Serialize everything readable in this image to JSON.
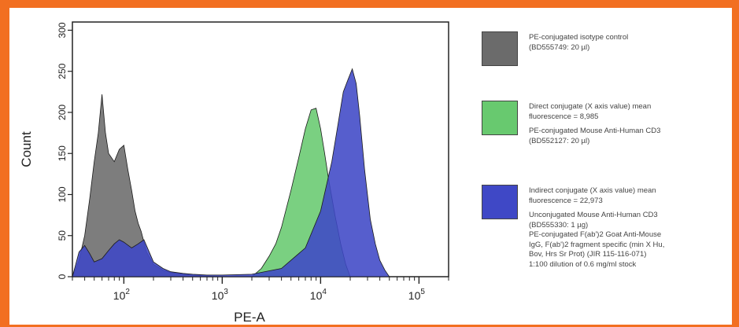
{
  "chart_data": {
    "type": "area",
    "xlabel": "PE-A",
    "ylabel": "Count",
    "xscale": "log",
    "xlim": [
      30,
      200000
    ],
    "ylim": [
      0,
      310
    ],
    "y_ticks": [
      0,
      50,
      100,
      150,
      200,
      250,
      300
    ],
    "x_tick_labels": [
      {
        "value": 100,
        "base": "10",
        "exp": "2"
      },
      {
        "value": 1000,
        "base": "10",
        "exp": "3"
      },
      {
        "value": 10000,
        "base": "10",
        "exp": "4"
      },
      {
        "value": 100000,
        "base": "10",
        "exp": "5"
      }
    ],
    "series": [
      {
        "key": "isotype",
        "color": "#6b6b6b",
        "x": [
          30,
          35,
          40,
          45,
          50,
          55,
          60,
          65,
          70,
          80,
          90,
          100,
          110,
          120,
          130,
          140,
          150,
          170,
          200,
          250,
          300,
          400,
          500,
          700,
          1000
        ],
        "values": [
          0,
          20,
          50,
          95,
          140,
          175,
          222,
          175,
          150,
          140,
          155,
          160,
          130,
          105,
          80,
          65,
          55,
          30,
          15,
          8,
          5,
          3,
          2,
          1,
          0
        ]
      },
      {
        "key": "direct",
        "color": "#68c96f",
        "x": [
          2000,
          2500,
          3000,
          3500,
          4000,
          5000,
          6000,
          7000,
          8000,
          9000,
          10000,
          11000,
          12000,
          14000,
          16000,
          18000,
          20000
        ],
        "values": [
          0,
          10,
          25,
          40,
          60,
          105,
          145,
          180,
          203,
          205,
          180,
          150,
          120,
          75,
          40,
          15,
          0
        ]
      },
      {
        "key": "indirect",
        "color": "#3f48c6",
        "x": [
          30,
          35,
          40,
          45,
          50,
          60,
          70,
          80,
          90,
          100,
          120,
          140,
          160,
          200,
          250,
          300,
          400,
          500,
          700,
          1000,
          2000,
          4000,
          7000,
          10000,
          13000,
          15000,
          17000,
          19000,
          21000,
          23000,
          25000,
          28000,
          32000,
          36000,
          40000,
          45000,
          50000
        ],
        "values": [
          0,
          30,
          38,
          28,
          18,
          22,
          32,
          40,
          45,
          42,
          35,
          40,
          45,
          18,
          10,
          6,
          4,
          3,
          2,
          2,
          3,
          10,
          35,
          80,
          140,
          185,
          225,
          240,
          253,
          235,
          195,
          130,
          70,
          40,
          20,
          8,
          0
        ]
      }
    ]
  },
  "legend": [
    {
      "key": "isotype",
      "color": "#6b6b6b",
      "lines": [
        "PE-conjugated isotype control",
        "(BD555749: 20 µl)"
      ]
    },
    {
      "key": "direct",
      "color": "#68c96f",
      "lines": [
        "Direct conjugate (X axis value) mean",
        "fluorescence = 8,985"
      ],
      "sub_lines": [
        "PE-conjugated Mouse Anti-Human CD3",
        "(BD552127: 20 µl)"
      ]
    },
    {
      "key": "indirect",
      "color": "#3f48c6",
      "lines": [
        "Indirect conjugate (X axis value) mean",
        "fluorescence = 22,973"
      ],
      "sub_lines": [
        "Unconjugated Mouse Anti-Human CD3",
        "(BD555330: 1 µg)",
        "PE-conjugated F(ab')2 Goat Anti-Mouse",
        "IgG, F(ab')2 fragment specific (min X Hu,",
        "Bov, Hrs Sr Prot) (JIR 115-116-071)",
        "1:100 dilution of 0.6 mg/ml stock"
      ]
    }
  ]
}
